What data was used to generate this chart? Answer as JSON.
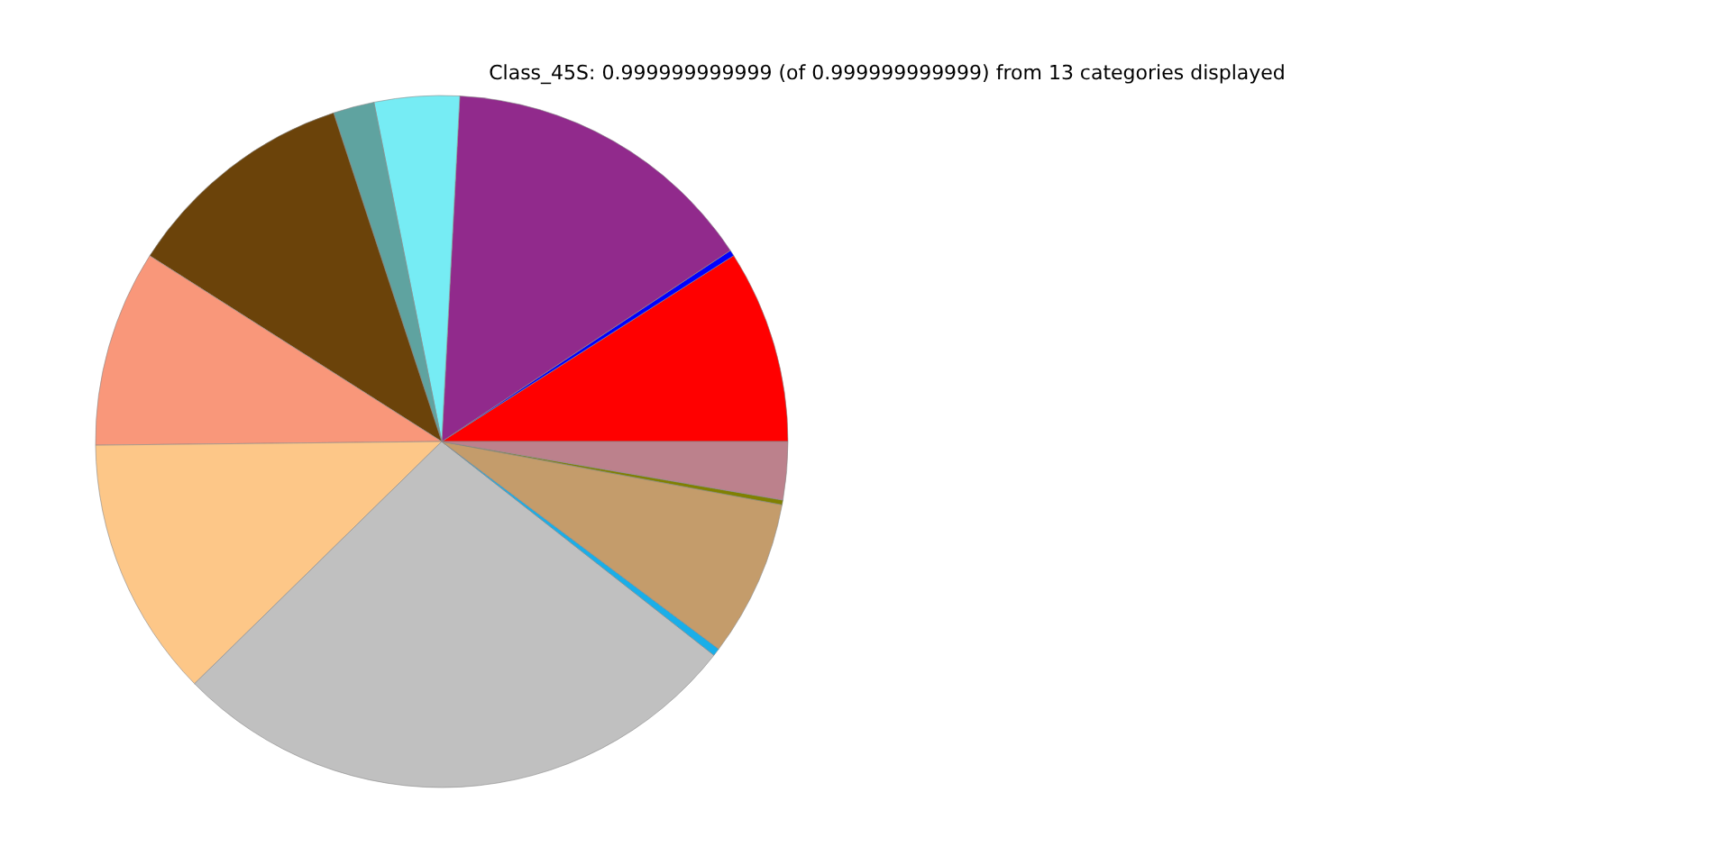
{
  "chart_data": {
    "type": "pie",
    "title": "Class_45S: 0.999999999999 (of 0.999999999999) from 13 categories displayed",
    "categories": [
      null,
      null,
      null,
      null,
      null,
      null,
      null,
      null,
      null,
      null,
      null,
      null,
      null
    ],
    "values": [
      9.03,
      0.28,
      14.86,
      3.97,
      1.92,
      10.92,
      9.19,
      12.17,
      27.06,
      0.36,
      7.31,
      0.22,
      2.71
    ],
    "colors": [
      "#ff0000",
      "#0000ff",
      "#912a8c",
      "#76ecf4",
      "#5fa3a0",
      "#6b430a",
      "#f9977a",
      "#fdc788",
      "#c0c0c0",
      "#1aaee8",
      "#c49c6b",
      "#808000",
      "#bc818c"
    ],
    "legend": false
  }
}
